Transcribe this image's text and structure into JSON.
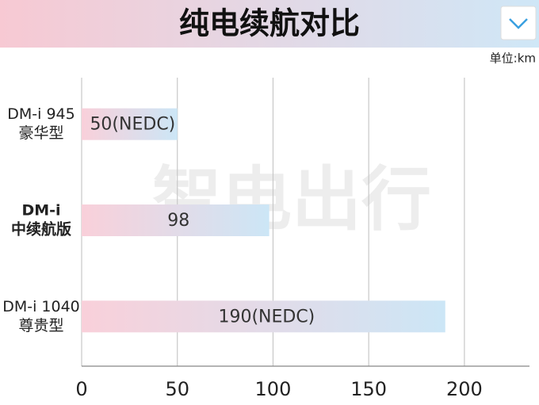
{
  "chart_data": {
    "type": "bar",
    "orientation": "horizontal",
    "title": "纯电续航对比",
    "unit_label": "单位:km",
    "watermark": "智电出行",
    "categories": [
      [
        "DM-i 945",
        "豪华型"
      ],
      [
        "DM-i",
        "中续航版"
      ],
      [
        "DM-i 1040",
        "尊贵型"
      ]
    ],
    "bold_category": 1,
    "values": [
      50,
      98,
      190
    ],
    "value_labels": [
      "50(NEDC)",
      "98",
      "190(NEDC)"
    ],
    "colors": [
      "#f9d0da",
      "#cce6f6"
    ],
    "xlim": [
      0,
      234
    ],
    "xticks": [
      0,
      50,
      100,
      150,
      200
    ],
    "grid": true
  }
}
